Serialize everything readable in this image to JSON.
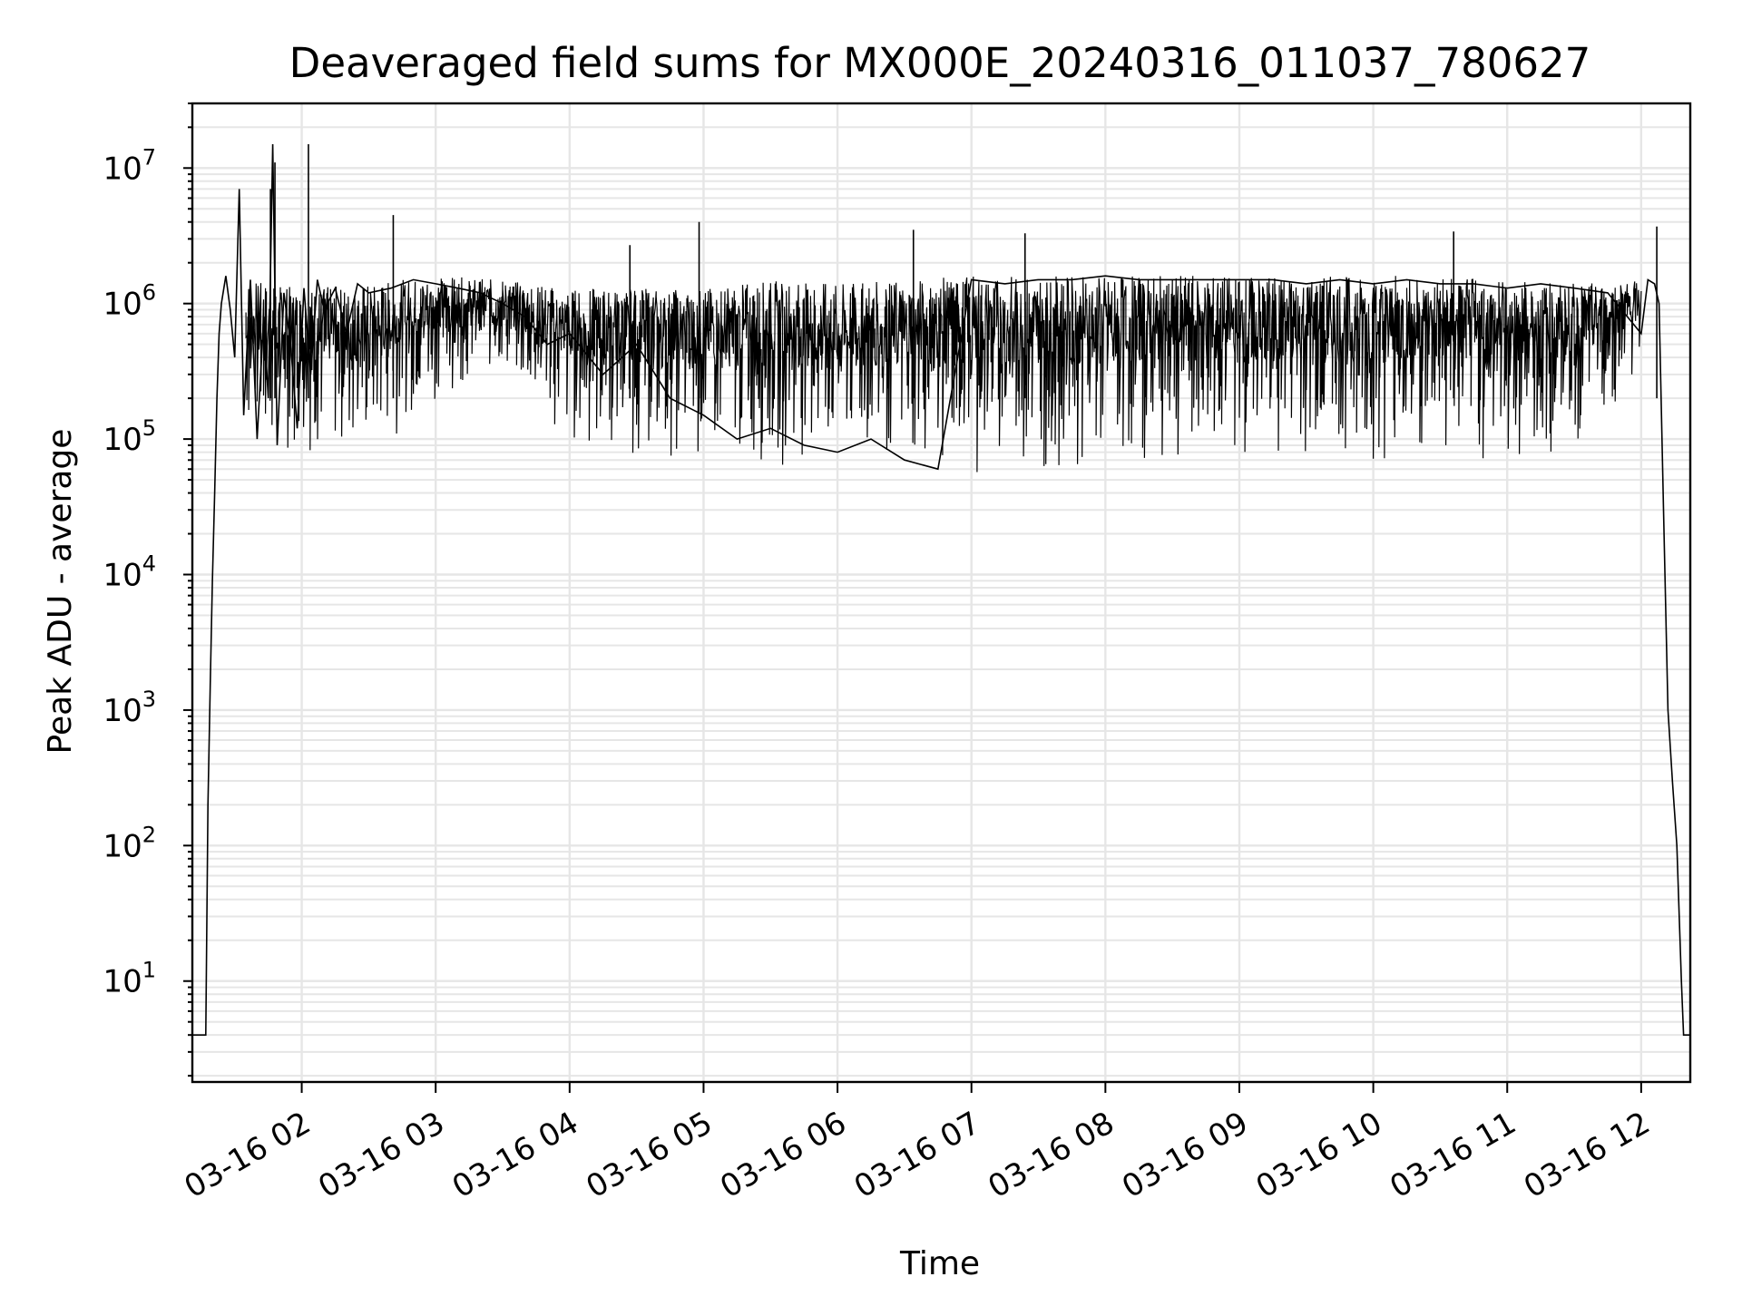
{
  "chart_data": {
    "type": "line",
    "title": "Deaveraged field sums for MX000E_20240316_011037_780627",
    "xlabel": "Time",
    "ylabel": "Peak ADU - average",
    "yscale": "log",
    "ylim": [
      1.8,
      30000000
    ],
    "xlim": [
      "2024-03-16 01:11",
      "2024-03-16 12:22"
    ],
    "grid": true,
    "legend": "none",
    "line_color": "#000000",
    "x_ticks": [
      {
        "label": "03-16 02",
        "t": "2024-03-16 02:00"
      },
      {
        "label": "03-16 03",
        "t": "2024-03-16 03:00"
      },
      {
        "label": "03-16 04",
        "t": "2024-03-16 04:00"
      },
      {
        "label": "03-16 05",
        "t": "2024-03-16 05:00"
      },
      {
        "label": "03-16 06",
        "t": "2024-03-16 06:00"
      },
      {
        "label": "03-16 07",
        "t": "2024-03-16 07:00"
      },
      {
        "label": "03-16 08",
        "t": "2024-03-16 08:00"
      },
      {
        "label": "03-16 09",
        "t": "2024-03-16 09:00"
      },
      {
        "label": "03-16 10",
        "t": "2024-03-16 10:00"
      },
      {
        "label": "03-16 11",
        "t": "2024-03-16 11:00"
      },
      {
        "label": "03-16 12",
        "t": "2024-03-16 12:00"
      }
    ],
    "y_ticks": [
      {
        "label": "10",
        "exp": "1",
        "value": 10
      },
      {
        "label": "10",
        "exp": "2",
        "value": 100
      },
      {
        "label": "10",
        "exp": "3",
        "value": 1000
      },
      {
        "label": "10",
        "exp": "4",
        "value": 10000
      },
      {
        "label": "10",
        "exp": "5",
        "value": 100000
      },
      {
        "label": "10",
        "exp": "6",
        "value": 1000000
      },
      {
        "label": "10",
        "exp": "7",
        "value": 10000000
      }
    ],
    "series": [
      {
        "x": [
          "2024-03-16 01:11",
          "2024-03-16 01:17",
          "2024-03-16 01:18",
          "2024-03-16 01:19",
          "2024-03-16 01:20",
          "2024-03-16 01:21",
          "2024-03-16 01:22",
          "2024-03-16 01:23",
          "2024-03-16 01:24",
          "2024-03-16 01:26",
          "2024-03-16 01:28",
          "2024-03-16 01:30",
          "2024-03-16 01:32",
          "2024-03-16 01:34",
          "2024-03-16 01:37",
          "2024-03-16 01:40",
          "2024-03-16 01:43",
          "2024-03-16 01:45",
          "2024-03-16 01:47",
          "2024-03-16 01:49",
          "2024-03-16 01:52",
          "2024-03-16 01:55",
          "2024-03-16 01:58",
          "2024-03-16 02:01",
          "2024-03-16 02:04",
          "2024-03-16 02:07",
          "2024-03-16 02:10",
          "2024-03-16 02:15",
          "2024-03-16 02:20",
          "2024-03-16 02:25",
          "2024-03-16 02:30",
          "2024-03-16 02:40",
          "2024-03-16 02:50",
          "2024-03-16 03:00",
          "2024-03-16 03:10",
          "2024-03-16 03:20",
          "2024-03-16 03:30",
          "2024-03-16 03:40",
          "2024-03-16 03:50",
          "2024-03-16 04:00",
          "2024-03-16 04:15",
          "2024-03-16 04:30",
          "2024-03-16 04:45",
          "2024-03-16 05:00",
          "2024-03-16 05:15",
          "2024-03-16 05:30",
          "2024-03-16 05:45",
          "2024-03-16 06:00",
          "2024-03-16 06:15",
          "2024-03-16 06:30",
          "2024-03-16 06:45",
          "2024-03-16 07:00",
          "2024-03-16 07:15",
          "2024-03-16 07:30",
          "2024-03-16 07:45",
          "2024-03-16 08:00",
          "2024-03-16 08:15",
          "2024-03-16 08:30",
          "2024-03-16 08:45",
          "2024-03-16 09:00",
          "2024-03-16 09:15",
          "2024-03-16 09:30",
          "2024-03-16 09:45",
          "2024-03-16 10:00",
          "2024-03-16 10:15",
          "2024-03-16 10:30",
          "2024-03-16 10:45",
          "2024-03-16 11:00",
          "2024-03-16 11:15",
          "2024-03-16 11:30",
          "2024-03-16 11:45",
          "2024-03-16 12:00",
          "2024-03-16 12:03",
          "2024-03-16 12:06",
          "2024-03-16 12:08",
          "2024-03-16 12:10",
          "2024-03-16 12:12",
          "2024-03-16 12:14",
          "2024-03-16 12:16",
          "2024-03-16 12:18",
          "2024-03-16 12:19",
          "2024-03-16 12:20",
          "2024-03-16 12:22"
        ],
        "y": [
          4,
          4,
          200,
          1500,
          9000,
          40000,
          200000,
          600000,
          1000000,
          1600000,
          900000,
          400000,
          7000000,
          150000,
          1500000,
          100000,
          800000,
          200000,
          15000000,
          90000,
          1200000,
          500000,
          120000,
          1300000,
          300000,
          1500000,
          900000,
          1300000,
          600000,
          1400000,
          1200000,
          1300000,
          1500000,
          1400000,
          1300000,
          1200000,
          1000000,
          800000,
          500000,
          600000,
          300000,
          500000,
          200000,
          150000,
          100000,
          120000,
          90000,
          80000,
          100000,
          70000,
          60000,
          1500000,
          1400000,
          1500000,
          1500000,
          1600000,
          1500000,
          1500000,
          1500000,
          1500000,
          1500000,
          1400000,
          1500000,
          1400000,
          1500000,
          1400000,
          1400000,
          1300000,
          1400000,
          1300000,
          1200000,
          600000,
          1500000,
          1400000,
          1000000,
          30000,
          1000,
          300,
          100,
          10,
          4,
          4,
          4
        ]
      }
    ],
    "band_envelope": {
      "x": [
        "2024-03-16 01:35",
        "2024-03-16 02:00",
        "2024-03-16 02:30",
        "2024-03-16 03:00",
        "2024-03-16 03:30",
        "2024-03-16 04:00",
        "2024-03-16 04:30",
        "2024-03-16 05:00",
        "2024-03-16 05:30",
        "2024-03-16 06:00",
        "2024-03-16 06:30",
        "2024-03-16 07:00",
        "2024-03-16 07:30",
        "2024-03-16 08:00",
        "2024-03-16 08:30",
        "2024-03-16 09:00",
        "2024-03-16 09:30",
        "2024-03-16 10:00",
        "2024-03-16 10:30",
        "2024-03-16 11:00",
        "2024-03-16 11:30",
        "2024-03-16 12:00"
      ],
      "low": [
        90000,
        70000,
        70000,
        200000,
        300000,
        70000,
        70000,
        60000,
        60000,
        60000,
        55000,
        55000,
        55000,
        55000,
        60000,
        60000,
        60000,
        60000,
        60000,
        60000,
        70000,
        300000
      ],
      "high": [
        1500000,
        1300000,
        1400000,
        1600000,
        1500000,
        1300000,
        1300000,
        1300000,
        1500000,
        1400000,
        1500000,
        1600000,
        1600000,
        1600000,
        1600000,
        1600000,
        1600000,
        1600000,
        1600000,
        1500000,
        1400000,
        1500000
      ]
    },
    "spikes": [
      {
        "t": "2024-03-16 01:46",
        "value": 7000000
      },
      {
        "t": "2024-03-16 01:48",
        "value": 11000000
      },
      {
        "t": "2024-03-16 02:03",
        "value": 15000000
      },
      {
        "t": "2024-03-16 02:41",
        "value": 4500000
      },
      {
        "t": "2024-03-16 04:27",
        "value": 2700000
      },
      {
        "t": "2024-03-16 04:58",
        "value": 4000000
      },
      {
        "t": "2024-03-16 06:34",
        "value": 3500000
      },
      {
        "t": "2024-03-16 07:24",
        "value": 3300000
      },
      {
        "t": "2024-03-16 10:36",
        "value": 3400000
      },
      {
        "t": "2024-03-16 12:07",
        "value": 3700000
      }
    ]
  }
}
